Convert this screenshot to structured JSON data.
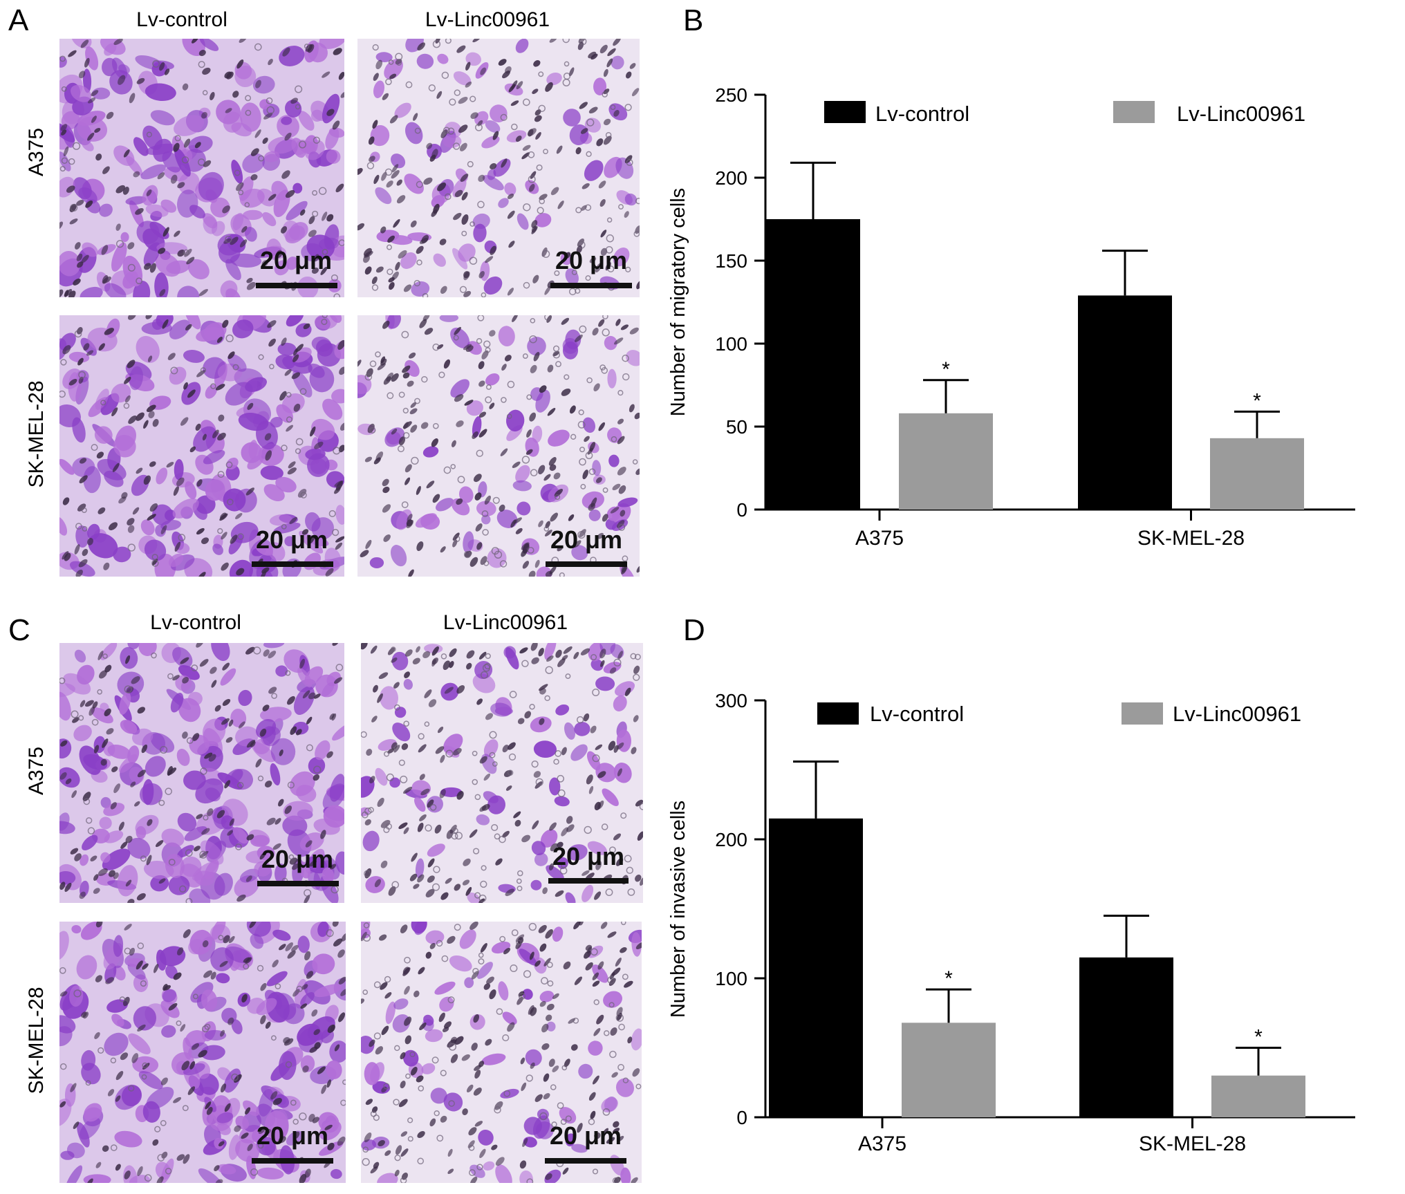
{
  "panels": {
    "A": {
      "letter": "A",
      "columns": [
        "Lv-control",
        "Lv-Linc00961"
      ],
      "rows": [
        "A375",
        "SK-MEL-28"
      ],
      "scale_bar": "20 μm"
    },
    "C": {
      "letter": "C",
      "columns": [
        "Lv-control",
        "Lv-Linc00961"
      ],
      "rows": [
        "A375",
        "SK-MEL-28"
      ],
      "scale_bar": "20 μm"
    }
  },
  "colors": {
    "control": "#000000",
    "linc": "#9b9b9b",
    "stain_dense": "#8a3fc7",
    "stain_light": "#b36fd8",
    "background": "#e9dff0"
  },
  "chart_data": [
    {
      "panel": "B",
      "type": "bar",
      "title": "",
      "xlabel": "",
      "ylabel": "Number of migratory cells",
      "ylim": [
        0,
        250
      ],
      "yticks": [
        0,
        50,
        100,
        150,
        200,
        250
      ],
      "categories": [
        "A375",
        "SK-MEL-28"
      ],
      "legend_position": "top",
      "series": [
        {
          "name": "Lv-control",
          "color": "#000000",
          "values": [
            175,
            129
          ],
          "errors": [
            34,
            27
          ],
          "significance": [
            "",
            ""
          ]
        },
        {
          "name": "Lv-Linc00961",
          "color": "#9b9b9b",
          "values": [
            58,
            43
          ],
          "errors": [
            20,
            16
          ],
          "significance": [
            "*",
            "*"
          ]
        }
      ]
    },
    {
      "panel": "D",
      "type": "bar",
      "title": "",
      "xlabel": "",
      "ylabel": "Number of invasive cells",
      "ylim": [
        0,
        300
      ],
      "yticks": [
        0,
        100,
        200,
        300
      ],
      "categories": [
        "A375",
        "SK-MEL-28"
      ],
      "legend_position": "top",
      "series": [
        {
          "name": "Lv-control",
          "color": "#000000",
          "values": [
            215,
            115
          ],
          "errors": [
            41,
            30
          ],
          "significance": [
            "",
            ""
          ]
        },
        {
          "name": "Lv-Linc00961",
          "color": "#9b9b9b",
          "values": [
            68,
            30
          ],
          "errors": [
            24,
            20
          ],
          "significance": [
            "*",
            "*"
          ]
        }
      ]
    }
  ]
}
